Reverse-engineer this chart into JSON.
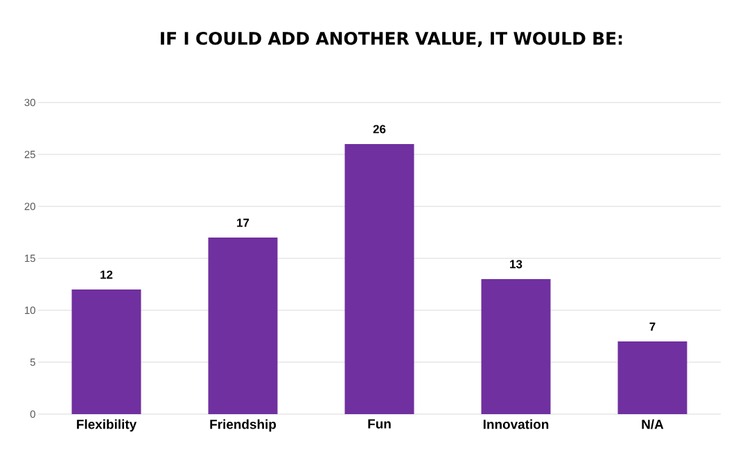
{
  "chart_data": {
    "type": "bar",
    "title": "IF I COULD ADD ANOTHER VALUE, IT WOULD BE:",
    "categories": [
      "Flexibility",
      "Friendship",
      "Fun",
      "Innovation",
      "N/A"
    ],
    "values": [
      12,
      17,
      26,
      13,
      7
    ],
    "color": "#7030a0",
    "ylim": [
      0,
      30
    ],
    "yticks": [
      0,
      5,
      10,
      15,
      20,
      25,
      30
    ],
    "grid": "y",
    "data_labels": true
  }
}
